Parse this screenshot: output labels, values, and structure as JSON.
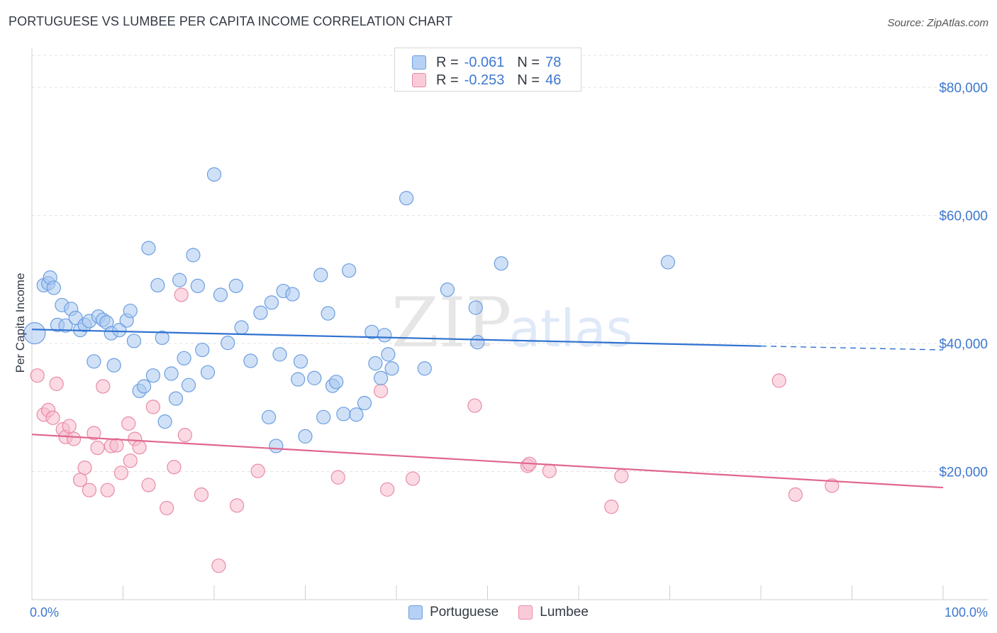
{
  "header": {
    "title": "PORTUGUESE VS LUMBEE PER CAPITA INCOME CORRELATION CHART",
    "source": "Source: ZipAtlas.com"
  },
  "legend": {
    "portuguese": {
      "r_label": "R =",
      "r_value": "-0.061",
      "n_label": "N =",
      "n_value": "78"
    },
    "lumbee": {
      "r_label": "R =",
      "r_value": "-0.253",
      "n_label": "N =",
      "n_value": "46"
    }
  },
  "colors": {
    "portuguese_fill": "#a9c8f0",
    "portuguese_stroke": "#6b9ee0",
    "portuguese_line": "#2f72d0",
    "lumbee_fill": "#f7bccd",
    "lumbee_stroke": "#e98aa6",
    "lumbee_line": "#e0668e",
    "tick_text": "#3d78d0"
  },
  "chart_data": {
    "type": "scatter",
    "title": "PORTUGUESE VS LUMBEE PER CAPITA INCOME CORRELATION CHART",
    "xlabel": "",
    "ylabel": "Per Capita Income",
    "xlim": [
      0,
      100
    ],
    "ylim": [
      0,
      85000
    ],
    "x_tick_labels": [
      "0.0%",
      "100.0%"
    ],
    "y_ticks": [
      20000,
      40000,
      60000,
      80000
    ],
    "y_tick_labels": [
      "$20,000",
      "$40,000",
      "$60,000",
      "$80,000"
    ],
    "grid": "horizontal dashed",
    "legend_position": "top-center",
    "watermark": "ZIPatlas",
    "series": [
      {
        "name": "Portuguese",
        "r": -0.061,
        "n": 78,
        "trend": {
          "x": [
            0,
            80
          ],
          "y": [
            42200,
            39600
          ],
          "dashed_extension_to_x": 100,
          "dashed_end_y": 39000
        },
        "points": [
          [
            0.3,
            41600
          ],
          [
            1.3,
            49100
          ],
          [
            1.8,
            49400
          ],
          [
            2.0,
            50300
          ],
          [
            2.4,
            48700
          ],
          [
            2.8,
            42900
          ],
          [
            3.3,
            46000
          ],
          [
            3.7,
            42800
          ],
          [
            4.3,
            45400
          ],
          [
            4.8,
            44000
          ],
          [
            5.3,
            42100
          ],
          [
            5.8,
            42900
          ],
          [
            6.3,
            43500
          ],
          [
            6.8,
            37200
          ],
          [
            7.3,
            44200
          ],
          [
            7.8,
            43700
          ],
          [
            8.2,
            43300
          ],
          [
            8.7,
            41600
          ],
          [
            9.0,
            36600
          ],
          [
            9.6,
            42100
          ],
          [
            10.4,
            43600
          ],
          [
            10.8,
            45100
          ],
          [
            11.2,
            40400
          ],
          [
            11.8,
            32600
          ],
          [
            12.3,
            33300
          ],
          [
            12.8,
            54900
          ],
          [
            13.3,
            35000
          ],
          [
            13.8,
            49100
          ],
          [
            14.3,
            40900
          ],
          [
            14.6,
            27800
          ],
          [
            15.3,
            35300
          ],
          [
            15.8,
            31400
          ],
          [
            16.2,
            49900
          ],
          [
            16.7,
            37700
          ],
          [
            17.2,
            33500
          ],
          [
            17.7,
            53800
          ],
          [
            18.2,
            49000
          ],
          [
            18.7,
            39000
          ],
          [
            19.3,
            35500
          ],
          [
            20.0,
            66400
          ],
          [
            20.7,
            47600
          ],
          [
            21.5,
            40100
          ],
          [
            22.4,
            49000
          ],
          [
            23.0,
            42500
          ],
          [
            24.0,
            37300
          ],
          [
            25.1,
            44800
          ],
          [
            26.0,
            28500
          ],
          [
            26.3,
            46400
          ],
          [
            26.8,
            24000
          ],
          [
            27.2,
            38300
          ],
          [
            27.6,
            48200
          ],
          [
            28.6,
            47700
          ],
          [
            29.2,
            34400
          ],
          [
            29.5,
            37200
          ],
          [
            30.0,
            25500
          ],
          [
            31.0,
            34600
          ],
          [
            31.7,
            50700
          ],
          [
            32.0,
            28500
          ],
          [
            32.5,
            44700
          ],
          [
            33.0,
            33400
          ],
          [
            33.4,
            34000
          ],
          [
            34.2,
            29000
          ],
          [
            34.8,
            51400
          ],
          [
            35.6,
            28900
          ],
          [
            36.5,
            30700
          ],
          [
            37.3,
            41800
          ],
          [
            37.7,
            36900
          ],
          [
            38.3,
            34600
          ],
          [
            38.7,
            41300
          ],
          [
            39.1,
            38300
          ],
          [
            39.5,
            36100
          ],
          [
            41.1,
            62700
          ],
          [
            43.1,
            36100
          ],
          [
            45.6,
            48400
          ],
          [
            48.7,
            45600
          ],
          [
            48.9,
            40200
          ],
          [
            51.5,
            52500
          ],
          [
            69.8,
            52700
          ]
        ]
      },
      {
        "name": "Lumbee",
        "r": -0.253,
        "n": 46,
        "trend": {
          "x": [
            0,
            100
          ],
          "y": [
            25800,
            17500
          ]
        },
        "points": [
          [
            0.6,
            35000
          ],
          [
            1.3,
            28900
          ],
          [
            1.8,
            29600
          ],
          [
            2.3,
            28400
          ],
          [
            2.7,
            33700
          ],
          [
            3.4,
            26600
          ],
          [
            3.7,
            25400
          ],
          [
            4.1,
            27100
          ],
          [
            4.6,
            25100
          ],
          [
            5.3,
            18700
          ],
          [
            5.8,
            20600
          ],
          [
            6.3,
            17100
          ],
          [
            6.8,
            26000
          ],
          [
            7.2,
            23700
          ],
          [
            7.8,
            33300
          ],
          [
            8.3,
            17100
          ],
          [
            8.7,
            24000
          ],
          [
            9.3,
            24100
          ],
          [
            9.8,
            19800
          ],
          [
            10.6,
            27500
          ],
          [
            10.8,
            21700
          ],
          [
            11.3,
            25100
          ],
          [
            11.8,
            23800
          ],
          [
            12.8,
            17900
          ],
          [
            13.3,
            30100
          ],
          [
            14.8,
            14300
          ],
          [
            15.6,
            20700
          ],
          [
            16.4,
            47600
          ],
          [
            16.8,
            25700
          ],
          [
            18.6,
            16400
          ],
          [
            20.5,
            5300
          ],
          [
            22.5,
            14700
          ],
          [
            24.8,
            20100
          ],
          [
            33.6,
            19100
          ],
          [
            38.3,
            32600
          ],
          [
            39.0,
            17200
          ],
          [
            41.8,
            18900
          ],
          [
            48.6,
            30300
          ],
          [
            54.4,
            20900
          ],
          [
            54.6,
            21200
          ],
          [
            56.8,
            20100
          ],
          [
            63.6,
            14500
          ],
          [
            64.7,
            19300
          ],
          [
            82.0,
            34200
          ],
          [
            83.8,
            16400
          ],
          [
            87.8,
            17800
          ]
        ]
      }
    ]
  },
  "bottom_legend": {
    "portuguese": "Portuguese",
    "lumbee": "Lumbee"
  }
}
